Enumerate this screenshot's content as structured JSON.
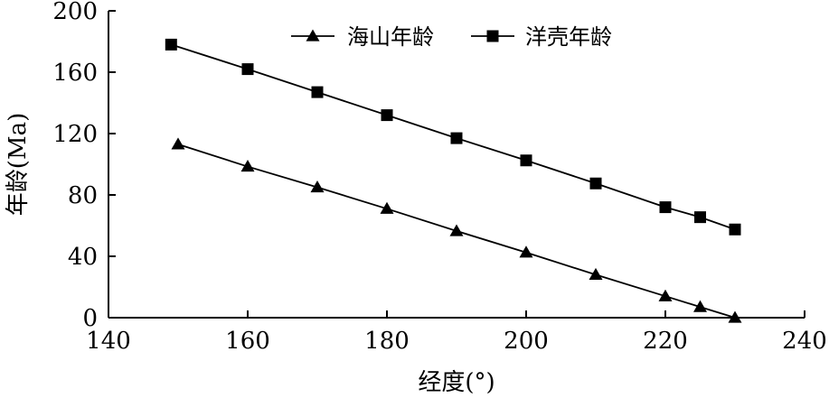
{
  "chart_data": {
    "type": "line",
    "title": "",
    "xlabel": "经度(°)",
    "ylabel": "年龄(Ma)",
    "xlim": [
      140,
      240
    ],
    "ylim": [
      0,
      200
    ],
    "xticks": [
      140,
      160,
      180,
      200,
      220,
      240
    ],
    "yticks": [
      0,
      40,
      80,
      120,
      160,
      200
    ],
    "grid": false,
    "legend_position": "top",
    "series": [
      {
        "name": "海山年龄",
        "marker": "triangle",
        "color": "#000000",
        "x": [
          150,
          160,
          170,
          180,
          190,
          200,
          210,
          220,
          225,
          230
        ],
        "y": [
          113,
          98.5,
          85,
          71,
          56.5,
          42.5,
          28,
          14,
          7,
          0
        ]
      },
      {
        "name": "洋壳年龄",
        "marker": "square",
        "color": "#000000",
        "x": [
          149,
          160,
          170,
          180,
          190,
          200,
          210,
          220,
          225,
          230
        ],
        "y": [
          178,
          162,
          147,
          132,
          117,
          102.5,
          87.5,
          72,
          65.5,
          57.5
        ]
      }
    ]
  }
}
